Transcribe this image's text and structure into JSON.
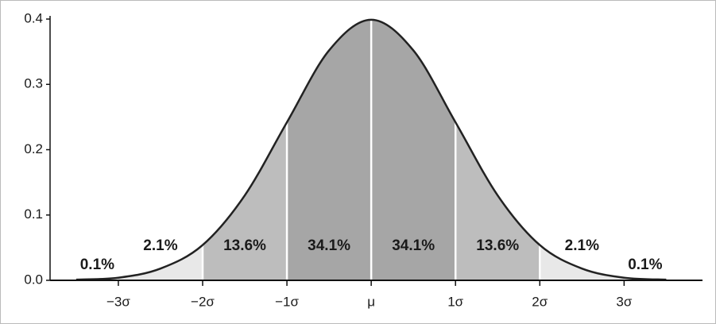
{
  "chart_data": {
    "type": "bell",
    "x": [
      -3.5,
      -3,
      -2.5,
      -2,
      -1.5,
      -1,
      -0.5,
      0,
      0.5,
      1,
      1.5,
      2,
      2.5,
      3,
      3.5
    ],
    "values": [
      0.001,
      0.004,
      0.018,
      0.054,
      0.13,
      0.242,
      0.352,
      0.399,
      0.352,
      0.242,
      0.13,
      0.054,
      0.018,
      0.004,
      0.001
    ],
    "color": "#222222",
    "xlim": [
      -3.81,
      3.93
    ],
    "xticks": [
      {
        "value": -3,
        "label": "−3σ"
      },
      {
        "value": -2,
        "label": "−2σ"
      },
      {
        "value": -1,
        "label": "−1σ"
      },
      {
        "value": 0,
        "label": "μ"
      },
      {
        "value": 1,
        "label": "1σ"
      },
      {
        "value": 2,
        "label": "2σ"
      },
      {
        "value": 3,
        "label": "3σ"
      }
    ],
    "ylim": [
      0,
      0.4
    ],
    "yticks": [
      {
        "value": 0,
        "label": "0.0"
      },
      0.1,
      0.2,
      0.3,
      0.4
    ],
    "bands": {
      "values": [
        0.1,
        2.1,
        13.6,
        34.1,
        34.1,
        13.6,
        2.1,
        0.1
      ],
      "value_labels": [
        "0.1%",
        "2.1%",
        "13.6%",
        "34.1%",
        "34.1%",
        "13.6%",
        "2.1%",
        "0.1%"
      ],
      "colors": [
        "#ffffff",
        "#e8e8e8",
        "#bdbdbd",
        "#a6a6a6",
        "#a6a6a6",
        "#bdbdbd",
        "#e8e8e8",
        "#ffffff"
      ]
    }
  }
}
